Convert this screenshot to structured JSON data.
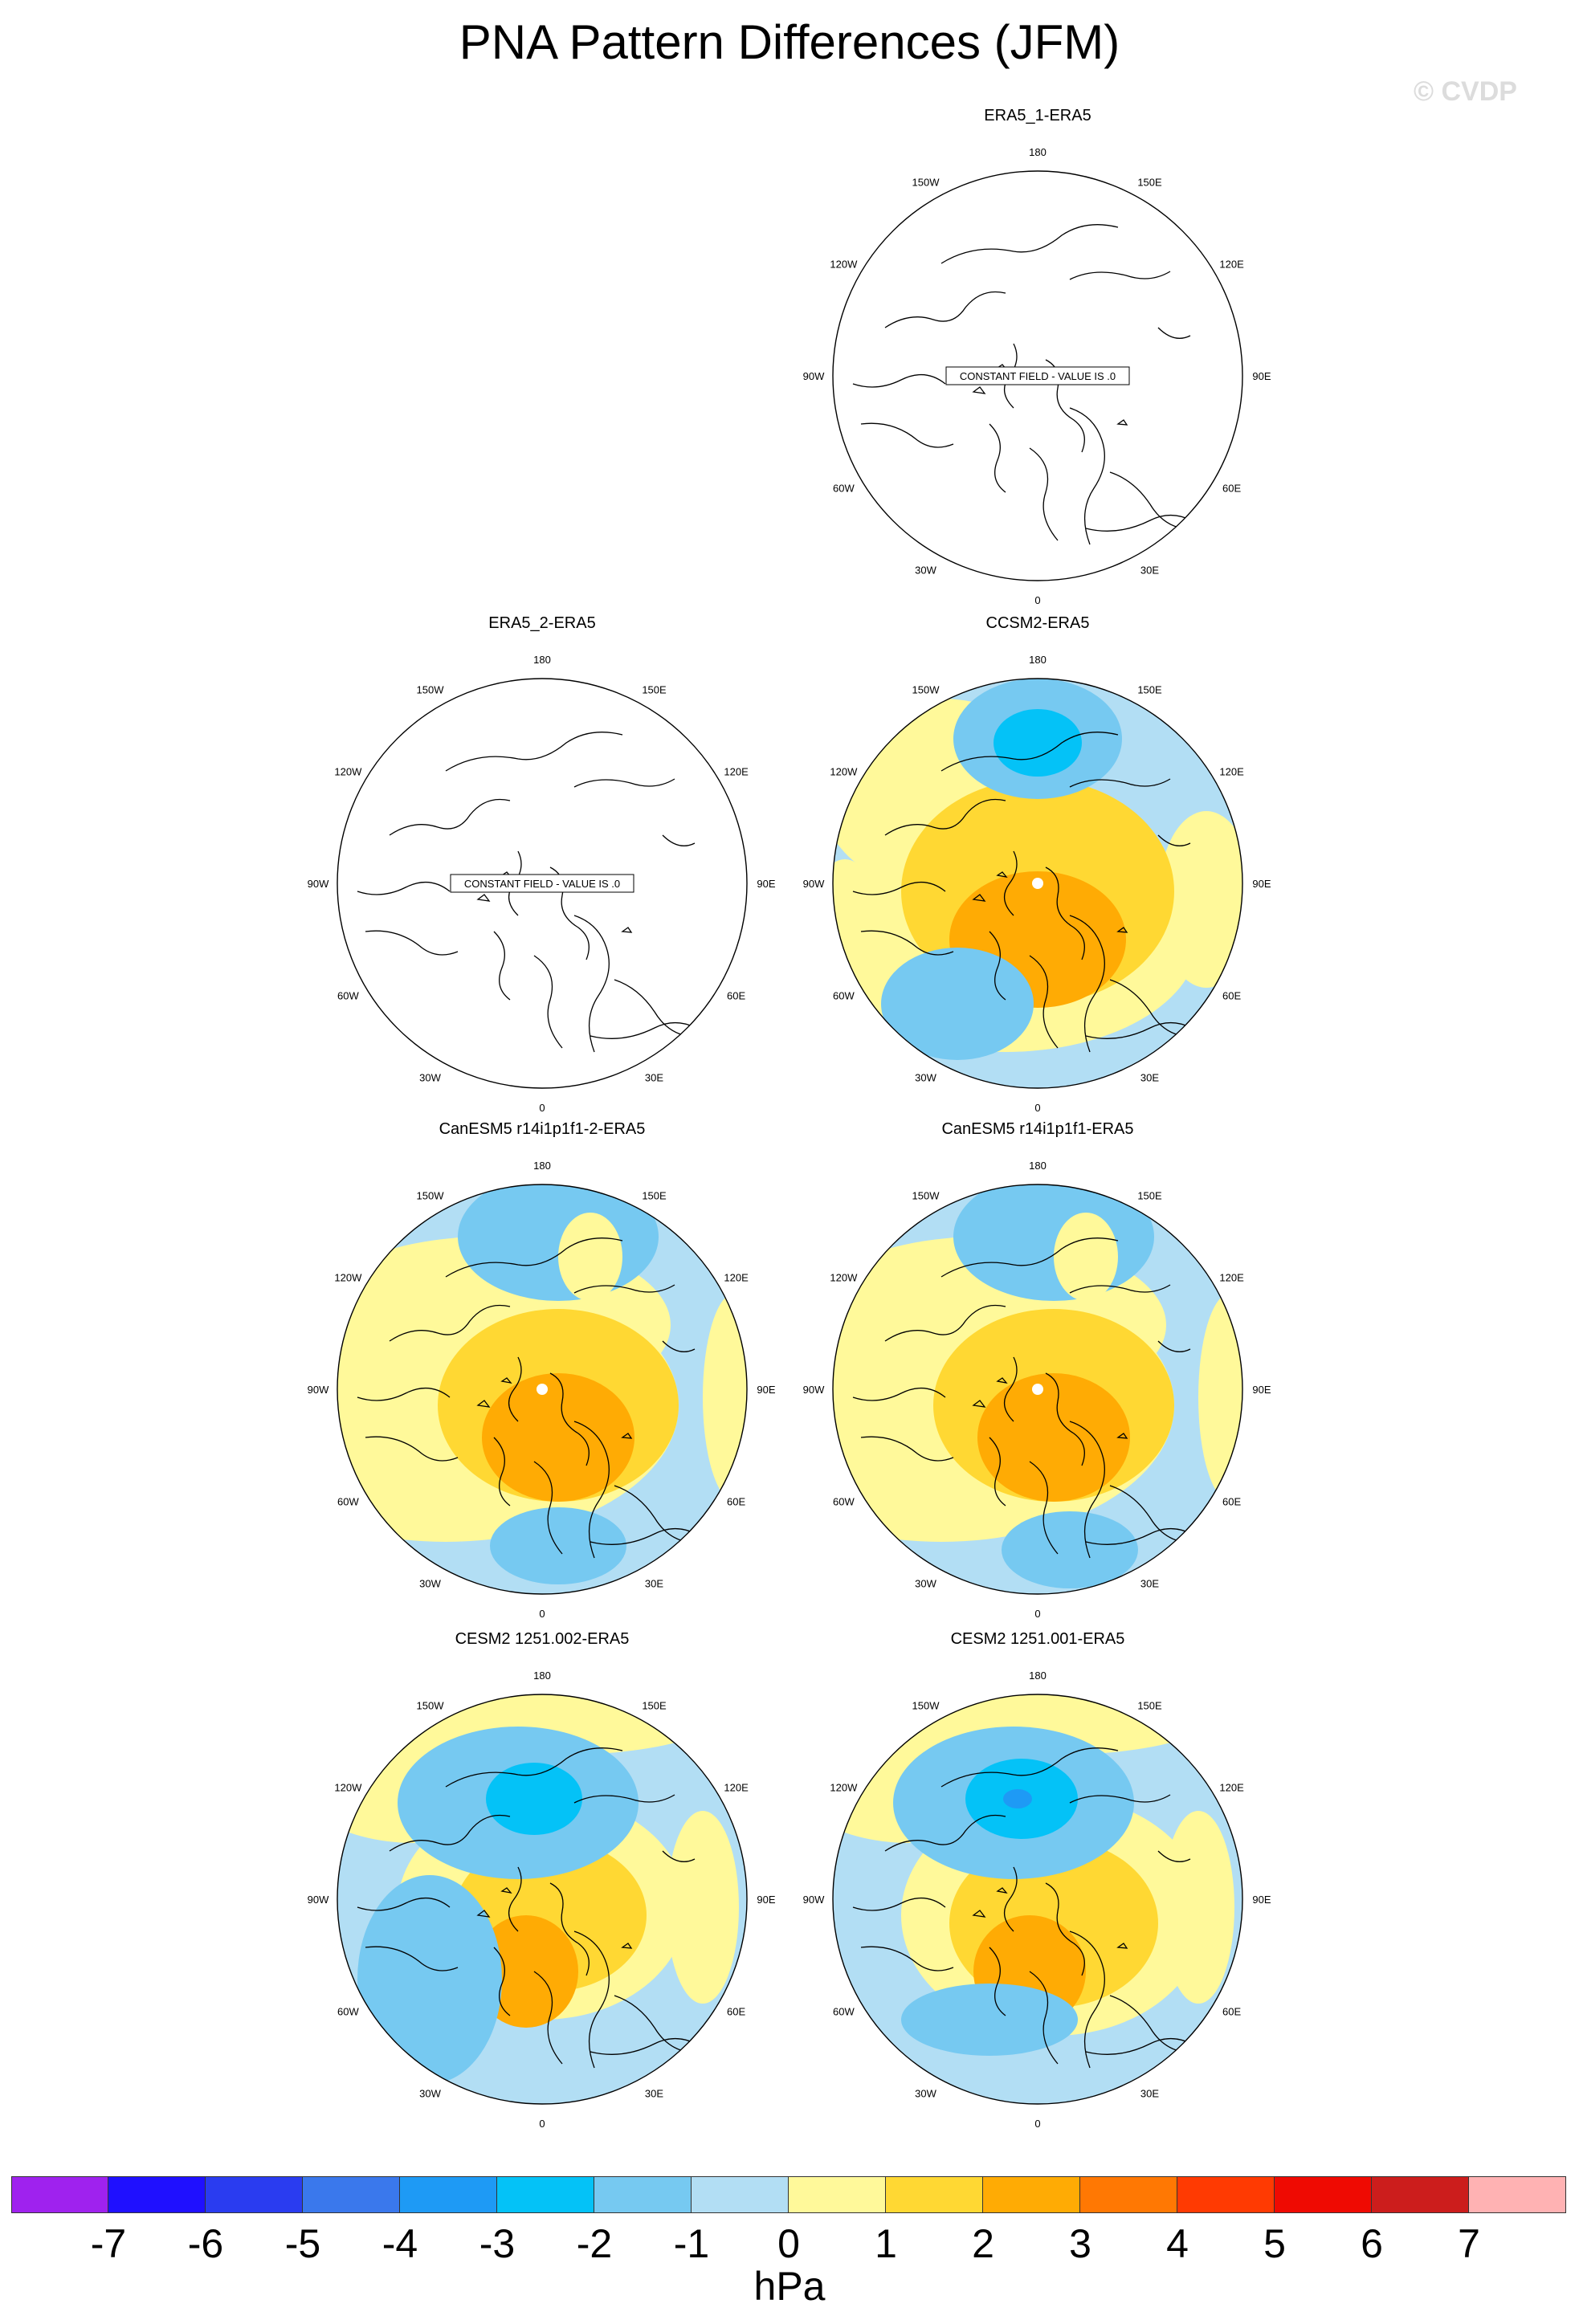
{
  "title": "PNA Pattern Differences (JFM)",
  "watermark": "© CVDP",
  "units": "hPa",
  "lon_labels": {
    "l180": "180",
    "l150W": "150W",
    "l150E": "150E",
    "l120W": "120W",
    "l120E": "120E",
    "l90W": "90W",
    "l90E": "90E",
    "l60W": "60W",
    "l60E": "60E",
    "l30W": "30W",
    "l30E": "30E",
    "l0": "0"
  },
  "panels": [
    {
      "title": "ERA5_1-ERA5",
      "constant_field": "CONSTANT FIELD - VALUE IS .0",
      "filled": false
    },
    {
      "title": "ERA5_2-ERA5",
      "constant_field": "CONSTANT FIELD - VALUE IS .0",
      "filled": false
    },
    {
      "title": "CCSM2-ERA5",
      "filled": true
    },
    {
      "title": "CanESM5 r14i1p1f1-2-ERA5",
      "filled": true
    },
    {
      "title": "CanESM5 r14i1p1f1-ERA5",
      "filled": true
    },
    {
      "title": "CESM2 1251.002-ERA5",
      "filled": true
    },
    {
      "title": "CESM2 1251.001-ERA5",
      "filled": true
    }
  ],
  "colorbar": {
    "labels": [
      "-7",
      "-6",
      "-5",
      "-4",
      "-3",
      "-2",
      "-1",
      "0",
      "1",
      "2",
      "3",
      "4",
      "5",
      "6",
      "7"
    ],
    "colors": [
      "#9f22ee",
      "#1f10ff",
      "#2a3cf0",
      "#3a78ec",
      "#1e9af5",
      "#04c2f7",
      "#76c9f1",
      "#b2def4",
      "#fff99a",
      "#ffd833",
      "#ffab04",
      "#ff7803",
      "#ff3a02",
      "#ef0a02",
      "#cc1d1c",
      "#ffb2b3"
    ]
  }
}
